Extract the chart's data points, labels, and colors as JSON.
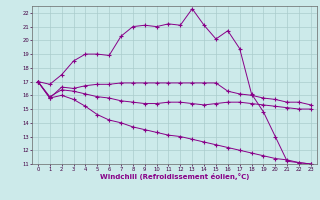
{
  "xlabel": "Windchill (Refroidissement éolien,°C)",
  "bg_color": "#cceaea",
  "line_color": "#880088",
  "grid_color": "#aacccc",
  "xlim": [
    -0.5,
    23.5
  ],
  "ylim": [
    11,
    22.5
  ],
  "yticks": [
    11,
    12,
    13,
    14,
    15,
    16,
    17,
    18,
    19,
    20,
    21,
    22
  ],
  "xticks": [
    0,
    1,
    2,
    3,
    4,
    5,
    6,
    7,
    8,
    9,
    10,
    11,
    12,
    13,
    14,
    15,
    16,
    17,
    18,
    19,
    20,
    21,
    22,
    23
  ],
  "line1_x": [
    0,
    1,
    2,
    3,
    4,
    5,
    6,
    7,
    8,
    9,
    10,
    11,
    12,
    13,
    14,
    15,
    16,
    17,
    18,
    19,
    20,
    21,
    22,
    23
  ],
  "line1_y": [
    17.0,
    16.8,
    17.5,
    18.5,
    19.0,
    19.0,
    18.9,
    20.3,
    21.0,
    21.1,
    21.0,
    21.2,
    21.1,
    22.3,
    21.1,
    20.1,
    20.7,
    19.4,
    16.1,
    14.8,
    13.0,
    11.2,
    11.1,
    11.0
  ],
  "line2_x": [
    0,
    1,
    2,
    3,
    4,
    5,
    6,
    7,
    8,
    9,
    10,
    11,
    12,
    13,
    14,
    15,
    16,
    17,
    18,
    19,
    20,
    21,
    22,
    23
  ],
  "line2_y": [
    17.0,
    15.8,
    16.6,
    16.5,
    16.7,
    16.8,
    16.8,
    16.9,
    16.9,
    16.9,
    16.9,
    16.9,
    16.9,
    16.9,
    16.9,
    16.9,
    16.3,
    16.1,
    16.0,
    15.8,
    15.7,
    15.5,
    15.5,
    15.3
  ],
  "line3_x": [
    0,
    1,
    2,
    3,
    4,
    5,
    6,
    7,
    8,
    9,
    10,
    11,
    12,
    13,
    14,
    15,
    16,
    17,
    18,
    19,
    20,
    21,
    22,
    23
  ],
  "line3_y": [
    17.0,
    15.9,
    16.4,
    16.3,
    16.1,
    15.9,
    15.8,
    15.6,
    15.5,
    15.4,
    15.4,
    15.5,
    15.5,
    15.4,
    15.3,
    15.4,
    15.5,
    15.5,
    15.4,
    15.3,
    15.2,
    15.1,
    15.0,
    15.0
  ],
  "line4_x": [
    0,
    1,
    2,
    3,
    4,
    5,
    6,
    7,
    8,
    9,
    10,
    11,
    12,
    13,
    14,
    15,
    16,
    17,
    18,
    19,
    20,
    21,
    22,
    23
  ],
  "line4_y": [
    17.0,
    15.8,
    16.0,
    15.7,
    15.2,
    14.6,
    14.2,
    14.0,
    13.7,
    13.5,
    13.3,
    13.1,
    13.0,
    12.8,
    12.6,
    12.4,
    12.2,
    12.0,
    11.8,
    11.6,
    11.4,
    11.3,
    11.1,
    11.0
  ]
}
